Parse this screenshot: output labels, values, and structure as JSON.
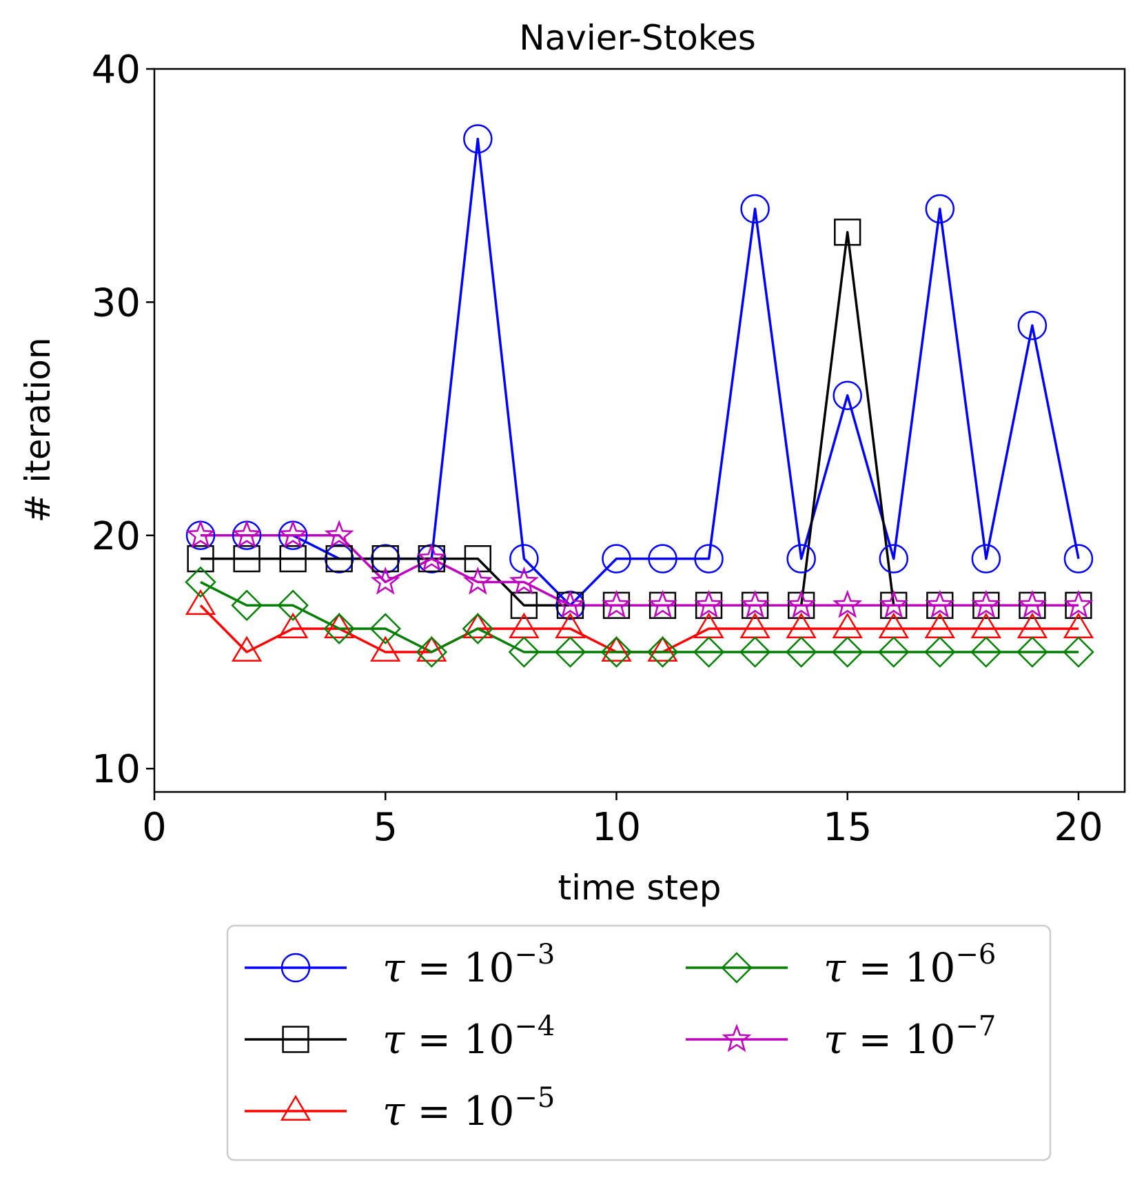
{
  "chart_data": {
    "type": "line",
    "title": "Navier-Stokes",
    "xlabel": "time step",
    "ylabel": "# iteration",
    "xlim": [
      0,
      21
    ],
    "ylim": [
      9,
      40
    ],
    "xticks": [
      0,
      5,
      10,
      15,
      20
    ],
    "yticks": [
      10,
      20,
      30,
      40
    ],
    "legend_position": "below",
    "legend_columns": 2,
    "x": [
      1,
      2,
      3,
      4,
      5,
      6,
      7,
      8,
      9,
      10,
      11,
      12,
      13,
      14,
      15,
      16,
      17,
      18,
      19,
      20
    ],
    "series": [
      {
        "name": "τ = 10⁻³",
        "tau": "τ",
        "base": " = 10",
        "exp": "−3",
        "color": "#0000ff",
        "marker": "circle",
        "values": [
          20,
          20,
          20,
          19,
          19,
          19,
          37,
          19,
          17,
          19,
          19,
          19,
          34,
          19,
          26,
          19,
          34,
          19,
          29,
          19
        ]
      },
      {
        "name": "τ = 10⁻⁴",
        "tau": "τ",
        "base": " = 10",
        "exp": "−4",
        "color": "#000000",
        "marker": "square",
        "values": [
          19,
          19,
          19,
          19,
          19,
          19,
          19,
          17,
          17,
          17,
          17,
          17,
          17,
          17,
          33,
          17,
          17,
          17,
          17,
          17
        ]
      },
      {
        "name": "τ = 10⁻⁵",
        "tau": "τ",
        "base": " = 10",
        "exp": "−5",
        "color": "#ff0000",
        "marker": "triangle",
        "values": [
          17,
          15,
          16,
          16,
          15,
          15,
          16,
          16,
          16,
          15,
          15,
          16,
          16,
          16,
          16,
          16,
          16,
          16,
          16,
          16
        ]
      },
      {
        "name": "τ = 10⁻⁶",
        "tau": "τ",
        "base": " = 10",
        "exp": "−6",
        "color": "#007f00",
        "marker": "diamond",
        "values": [
          18,
          17,
          17,
          16,
          16,
          15,
          16,
          15,
          15,
          15,
          15,
          15,
          15,
          15,
          15,
          15,
          15,
          15,
          15,
          15
        ]
      },
      {
        "name": "τ = 10⁻⁷",
        "tau": "τ",
        "base": " = 10",
        "exp": "−7",
        "color": "#bf00bf",
        "marker": "star",
        "values": [
          20,
          20,
          20,
          20,
          18,
          19,
          18,
          18,
          17,
          17,
          17,
          17,
          17,
          17,
          17,
          17,
          17,
          17,
          17,
          17
        ]
      }
    ]
  }
}
